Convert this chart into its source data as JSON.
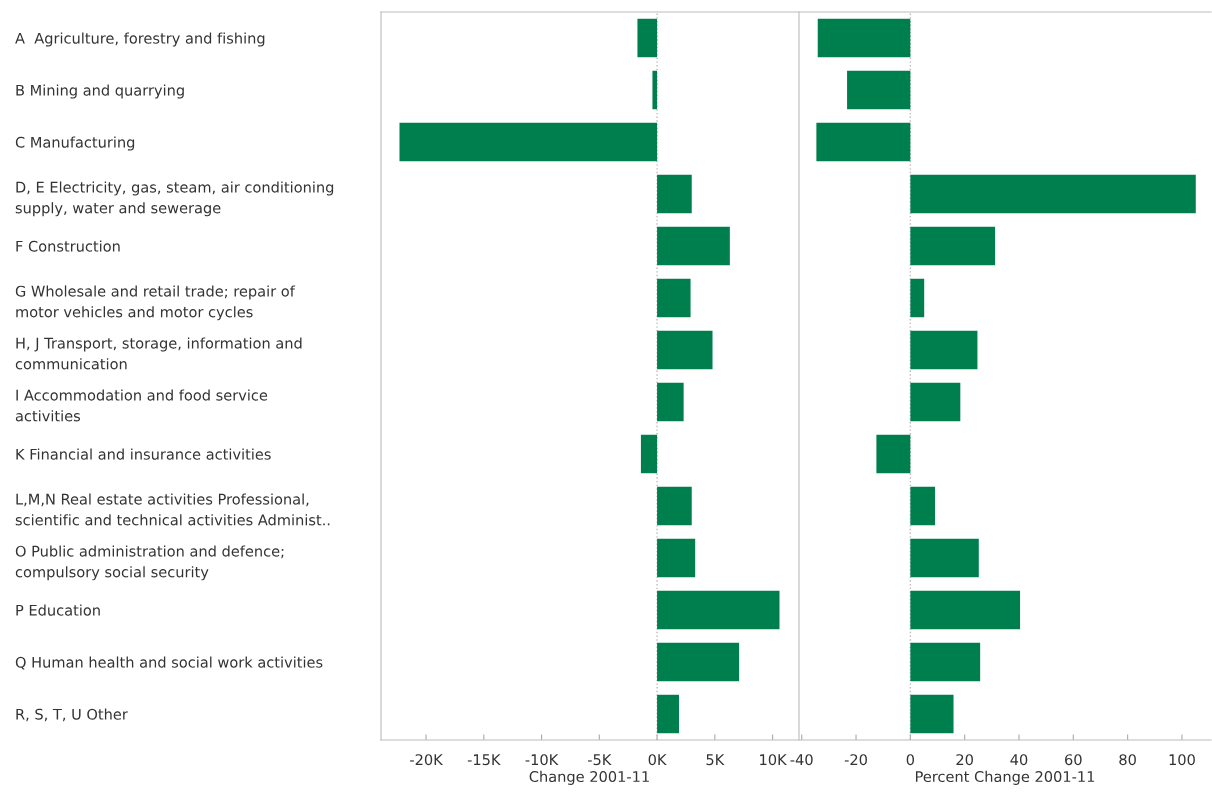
{
  "chart_data": [
    {
      "type": "bar",
      "orientation": "horizontal",
      "xlabel": "Change 2001-11",
      "categories": [
        "A  Agriculture, forestry and fishing",
        "B Mining and quarrying",
        "C Manufacturing",
        "D, E Electricity, gas, steam, air conditioning\nsupply, water and sewerage",
        "F Construction",
        "G Wholesale and retail trade; repair of\nmotor vehicles and motor cycles",
        "H, J Transport, storage, information and\ncommunication",
        "I Accommodation and food service\nactivities",
        "K Financial and insurance activities",
        "L,M,N Real estate activities Professional,\nscientific and technical activities Administ..",
        "O Public administration and defence;\ncompulsory social security",
        "P Education",
        "Q Human health and social work activities",
        "R, S, T, U Other"
      ],
      "values": [
        -1700,
        -400,
        -22300,
        3000,
        6300,
        2900,
        4800,
        2300,
        -1400,
        3000,
        3300,
        10600,
        7100,
        1900
      ],
      "color": "#007f4e",
      "xlim": [
        -23900,
        12200
      ],
      "xticks": [
        {
          "value": -20000,
          "label": "-20K"
        },
        {
          "value": -15000,
          "label": "-15K"
        },
        {
          "value": -10000,
          "label": "-10K"
        },
        {
          "value": -5000,
          "label": "-5K"
        },
        {
          "value": 0,
          "label": "0K"
        },
        {
          "value": 5000,
          "label": "5K"
        },
        {
          "value": 10000,
          "label": "10K"
        }
      ],
      "ref_lines": [
        {
          "axis": "x",
          "value": 0,
          "color": "#bbbbbb",
          "line_style": "dotted"
        }
      ],
      "grid": false,
      "legend": false
    },
    {
      "type": "bar",
      "orientation": "horizontal",
      "xlabel": "Percent Change 2001-11",
      "values": [
        -34.1,
        -23.3,
        -34.6,
        105.1,
        31.2,
        5.1,
        24.7,
        18.4,
        -12.5,
        9.1,
        25.2,
        40.4,
        25.7,
        15.9
      ],
      "color": "#007f4e",
      "xlim": [
        -41,
        110.7
      ],
      "xticks": [
        -40,
        -20,
        0,
        20,
        40,
        60,
        80,
        100
      ],
      "ref_lines": [
        {
          "axis": "x",
          "value": 0,
          "color": "#bbbbbb",
          "line_style": "dotted"
        }
      ],
      "tick_labels": "x",
      "grid": false,
      "legend": false
    }
  ]
}
